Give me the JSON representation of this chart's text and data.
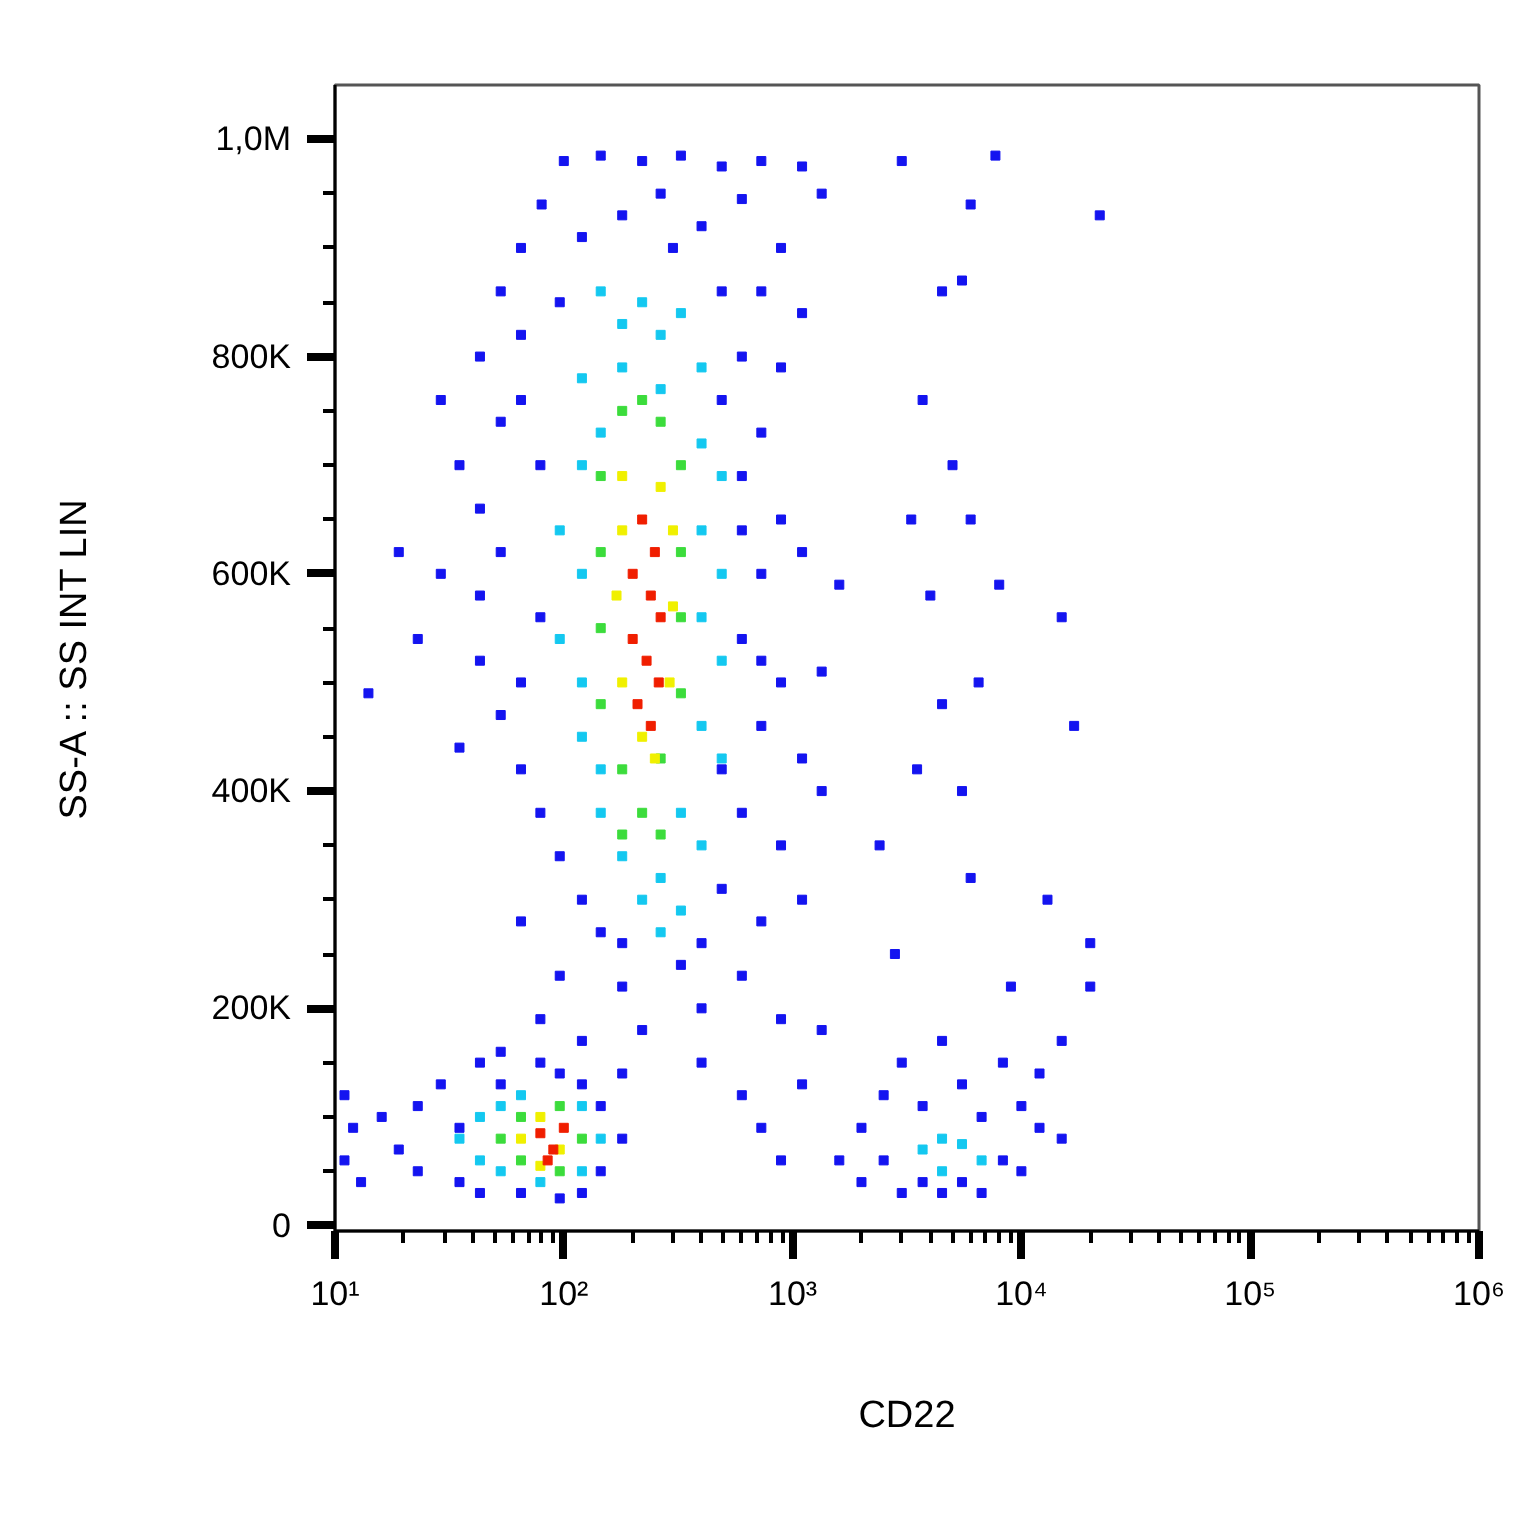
{
  "chart_data": {
    "type": "scatter",
    "xlabel": "CD22",
    "ylabel": "SS-A :: SS INT LIN",
    "log": "x",
    "marker": "square",
    "grid": false,
    "xlim": [
      10,
      1000000
    ],
    "ylim": [
      -5000,
      1050000
    ],
    "xticks": [
      {
        "value": 10,
        "label": "10¹"
      },
      {
        "value": 20,
        "label": null
      },
      {
        "value": 30,
        "label": null
      },
      {
        "value": 40,
        "label": null
      },
      {
        "value": 50,
        "label": null
      },
      {
        "value": 60,
        "label": null
      },
      {
        "value": 70,
        "label": null
      },
      {
        "value": 80,
        "label": null
      },
      {
        "value": 90,
        "label": null
      },
      {
        "value": 100,
        "label": "10²"
      },
      {
        "value": 200,
        "label": null
      },
      {
        "value": 300,
        "label": null
      },
      {
        "value": 400,
        "label": null
      },
      {
        "value": 500,
        "label": null
      },
      {
        "value": 600,
        "label": null
      },
      {
        "value": 700,
        "label": null
      },
      {
        "value": 800,
        "label": null
      },
      {
        "value": 900,
        "label": null
      },
      {
        "value": 1000,
        "label": "10³"
      },
      {
        "value": 2000,
        "label": null
      },
      {
        "value": 3000,
        "label": null
      },
      {
        "value": 4000,
        "label": null
      },
      {
        "value": 5000,
        "label": null
      },
      {
        "value": 6000,
        "label": null
      },
      {
        "value": 7000,
        "label": null
      },
      {
        "value": 8000,
        "label": null
      },
      {
        "value": 9000,
        "label": null
      },
      {
        "value": 10000,
        "label": "10⁴"
      },
      {
        "value": 20000,
        "label": null
      },
      {
        "value": 30000,
        "label": null
      },
      {
        "value": 40000,
        "label": null
      },
      {
        "value": 50000,
        "label": null
      },
      {
        "value": 60000,
        "label": null
      },
      {
        "value": 70000,
        "label": null
      },
      {
        "value": 80000,
        "label": null
      },
      {
        "value": 90000,
        "label": null
      },
      {
        "value": 100000,
        "label": "10⁵"
      },
      {
        "value": 200000,
        "label": null
      },
      {
        "value": 300000,
        "label": null
      },
      {
        "value": 400000,
        "label": null
      },
      {
        "value": 500000,
        "label": null
      },
      {
        "value": 600000,
        "label": null
      },
      {
        "value": 700000,
        "label": null
      },
      {
        "value": 800000,
        "label": null
      },
      {
        "value": 900000,
        "label": null
      },
      {
        "value": 1000000,
        "label": "10⁶"
      }
    ],
    "yticks": [
      {
        "value": 0,
        "label": "0"
      },
      {
        "value": 50000,
        "label": null
      },
      {
        "value": 100000,
        "label": null
      },
      {
        "value": 150000,
        "label": null
      },
      {
        "value": 200000,
        "label": "200K"
      },
      {
        "value": 250000,
        "label": null
      },
      {
        "value": 300000,
        "label": null
      },
      {
        "value": 350000,
        "label": null
      },
      {
        "value": 400000,
        "label": "400K"
      },
      {
        "value": 450000,
        "label": null
      },
      {
        "value": 500000,
        "label": null
      },
      {
        "value": 550000,
        "label": null
      },
      {
        "value": 600000,
        "label": "600K"
      },
      {
        "value": 650000,
        "label": null
      },
      {
        "value": 700000,
        "label": null
      },
      {
        "value": 750000,
        "label": null
      },
      {
        "value": 800000,
        "label": "800K"
      },
      {
        "value": 850000,
        "label": null
      },
      {
        "value": 900000,
        "label": null
      },
      {
        "value": 950000,
        "label": null
      },
      {
        "value": 1000000,
        "label": "1,0M"
      }
    ],
    "series": [
      {
        "color": "#1414f0",
        "x": [
          100,
          145,
          220,
          325,
          490,
          730,
          1100,
          80,
          265,
          600,
          1340,
          65,
          120,
          400,
          890,
          53,
          96,
          730,
          1100,
          43,
          65,
          600,
          890,
          29,
          53,
          490,
          730,
          35,
          43,
          600,
          890,
          19,
          29,
          43,
          53,
          730,
          1100,
          1600,
          23,
          43,
          600,
          890,
          1340,
          53,
          35,
          65,
          730,
          1100,
          1340,
          79,
          96,
          600,
          890,
          120,
          145,
          490,
          730,
          1100,
          65,
          96,
          180,
          325,
          600,
          79,
          120,
          220,
          400,
          890,
          14,
          65,
          79,
          600,
          490,
          180,
          300,
          79,
          65,
          730,
          490,
          180,
          400,
          11,
          11,
          12,
          13,
          16,
          19,
          23,
          23,
          29,
          35,
          35,
          43,
          43,
          53,
          65,
          79,
          96,
          120,
          145,
          145,
          180,
          120,
          96,
          180,
          53,
          400,
          600,
          730,
          890,
          1100,
          1340,
          1600,
          2000,
          2000,
          2500,
          2500,
          3000,
          3000,
          3700,
          3700,
          4500,
          4500,
          5500,
          5500,
          6700,
          6700,
          8300,
          8300,
          10000,
          10000,
          12000,
          12000,
          15000,
          15000,
          3000,
          7700,
          22000,
          6000,
          4500,
          5500,
          3700,
          3300,
          6000,
          5000,
          4000,
          8000,
          15000,
          4500,
          6500,
          17000,
          3500,
          5500,
          2400,
          6000,
          13000,
          20000,
          20000,
          2800,
          9000
        ],
        "values": [
          980000,
          985000,
          980000,
          985000,
          975000,
          980000,
          975000,
          940000,
          950000,
          945000,
          950000,
          900000,
          910000,
          920000,
          900000,
          860000,
          850000,
          860000,
          840000,
          800000,
          820000,
          800000,
          790000,
          760000,
          740000,
          760000,
          730000,
          700000,
          660000,
          690000,
          650000,
          620000,
          600000,
          580000,
          620000,
          600000,
          620000,
          590000,
          540000,
          520000,
          540000,
          500000,
          510000,
          470000,
          440000,
          420000,
          460000,
          430000,
          400000,
          380000,
          340000,
          380000,
          350000,
          300000,
          270000,
          310000,
          280000,
          300000,
          280000,
          230000,
          220000,
          240000,
          230000,
          190000,
          170000,
          180000,
          200000,
          190000,
          490000,
          760000,
          700000,
          640000,
          860000,
          930000,
          900000,
          560000,
          500000,
          520000,
          420000,
          260000,
          260000,
          120000,
          60000,
          90000,
          40000,
          100000,
          70000,
          50000,
          110000,
          130000,
          90000,
          40000,
          150000,
          30000,
          130000,
          30000,
          150000,
          140000,
          130000,
          110000,
          50000,
          80000,
          30000,
          25000,
          140000,
          160000,
          150000,
          120000,
          90000,
          60000,
          130000,
          180000,
          60000,
          90000,
          40000,
          120000,
          60000,
          30000,
          150000,
          110000,
          40000,
          170000,
          30000,
          130000,
          40000,
          100000,
          30000,
          60000,
          150000,
          110000,
          50000,
          90000,
          140000,
          80000,
          170000,
          980000,
          985000,
          930000,
          940000,
          860000,
          870000,
          760000,
          650000,
          650000,
          700000,
          580000,
          590000,
          560000,
          480000,
          500000,
          460000,
          420000,
          400000,
          350000,
          320000,
          300000,
          260000,
          220000,
          250000,
          220000
        ]
      },
      {
        "color": "#14c8f0",
        "x": [
          145,
          180,
          220,
          265,
          325,
          120,
          180,
          265,
          400,
          120,
          145,
          400,
          490,
          96,
          120,
          400,
          490,
          96,
          120,
          400,
          490,
          120,
          145,
          400,
          490,
          145,
          180,
          325,
          400,
          220,
          265,
          325,
          265,
          35,
          43,
          43,
          53,
          53,
          65,
          120,
          145,
          120,
          79,
          3700,
          4500,
          5500,
          4500,
          6700
        ],
        "values": [
          860000,
          830000,
          850000,
          820000,
          840000,
          780000,
          790000,
          770000,
          790000,
          700000,
          730000,
          720000,
          690000,
          640000,
          600000,
          640000,
          600000,
          540000,
          500000,
          560000,
          520000,
          450000,
          420000,
          460000,
          430000,
          380000,
          340000,
          380000,
          350000,
          300000,
          320000,
          290000,
          270000,
          80000,
          100000,
          60000,
          110000,
          50000,
          120000,
          110000,
          80000,
          50000,
          40000,
          70000,
          50000,
          75000,
          80000,
          60000
        ]
      },
      {
        "color": "#3cdc3c",
        "x": [
          180,
          220,
          265,
          145,
          325,
          145,
          325,
          145,
          325,
          145,
          325,
          180,
          265,
          220,
          265,
          180,
          53,
          65,
          65,
          96,
          120,
          96
        ],
        "values": [
          750000,
          760000,
          740000,
          690000,
          700000,
          620000,
          620000,
          550000,
          560000,
          480000,
          490000,
          420000,
          430000,
          380000,
          360000,
          360000,
          80000,
          100000,
          60000,
          110000,
          80000,
          50000
        ]
      },
      {
        "color": "#f0f000",
        "x": [
          180,
          265,
          180,
          300,
          170,
          300,
          180,
          290,
          220,
          250,
          65,
          79,
          96,
          79
        ],
        "values": [
          690000,
          680000,
          640000,
          640000,
          580000,
          570000,
          500000,
          500000,
          450000,
          430000,
          80000,
          100000,
          70000,
          55000
        ]
      },
      {
        "color": "#f01e00",
        "x": [
          220,
          250,
          200,
          240,
          265,
          200,
          230,
          260,
          210,
          240,
          79,
          90,
          100,
          85
        ],
        "values": [
          650000,
          620000,
          600000,
          580000,
          560000,
          540000,
          520000,
          500000,
          480000,
          460000,
          85000,
          70000,
          90000,
          60000
        ]
      }
    ]
  }
}
